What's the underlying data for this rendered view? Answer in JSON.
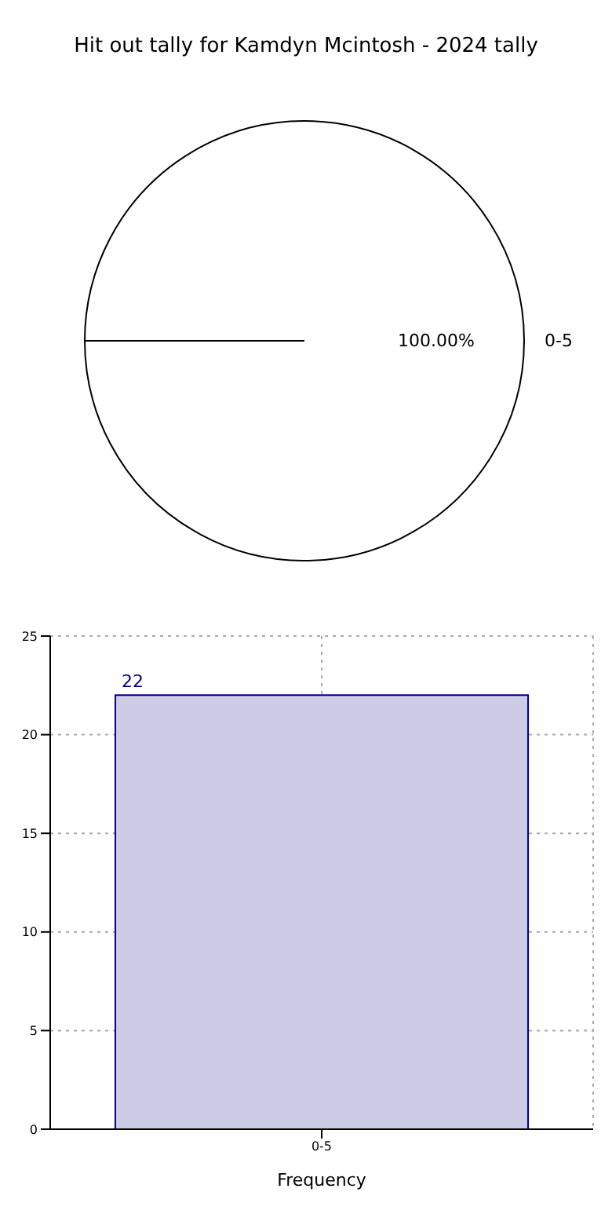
{
  "chart_data": [
    {
      "type": "pie",
      "title": "Hit out tally for Kamdyn Mcintosh - 2024 tally",
      "categories": [
        "0-5"
      ],
      "values": [
        100
      ],
      "colors": [
        "#ffffff"
      ],
      "value_labels": [
        "100.00%"
      ]
    },
    {
      "type": "bar",
      "categories": [
        "0-5"
      ],
      "values": [
        22
      ],
      "color": "#cccce6",
      "xlabel": "Frequency",
      "ylim": [
        0,
        25
      ],
      "yticks": [
        0,
        5,
        10,
        15,
        20,
        25
      ],
      "grid": true,
      "data_labels": true
    }
  ]
}
